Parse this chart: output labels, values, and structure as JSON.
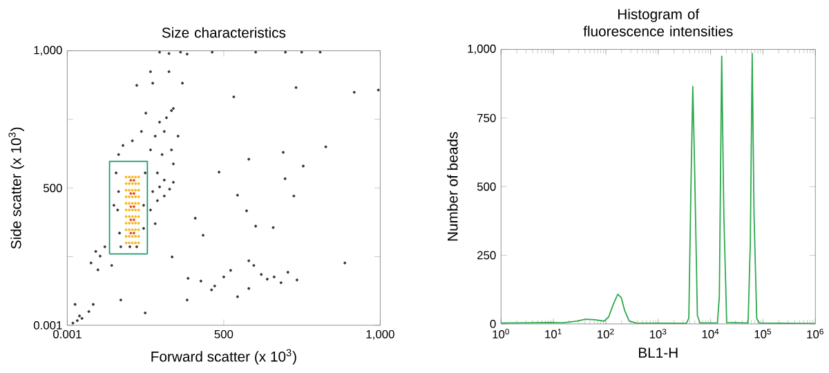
{
  "chart_data": [
    {
      "type": "scatter",
      "title": "Size characteristics",
      "xlabel": "Forward scatter (x 10$^{3}$)",
      "ylabel": "Side scatter (x 10$^{3}$)",
      "xlim": [
        0.001,
        1000
      ],
      "ylim": [
        0.001,
        1000
      ],
      "xticks": [
        0.001,
        500,
        {
          "value": 1000,
          "label": "1,000"
        }
      ],
      "yticks": [
        0.001,
        {
          "value": 250,
          "label": null
        },
        500,
        {
          "value": 750,
          "label": null
        },
        {
          "value": 1000,
          "label": "1,000"
        }
      ],
      "series": [
        {
          "color": "#333333",
          "x": [
            295,
            325,
            362,
            383,
            463,
            602,
            697,
            749,
            808,
            266,
            273,
            325,
            368,
            222,
            339,
            333,
            317,
            295,
            251,
            281,
            310,
            354,
            237,
            208,
            178,
            164,
            266,
            303,
            333,
            339,
            288,
            310,
            295,
            327,
            273,
            310,
            339,
            288,
            266,
            281,
            532,
            731,
            917,
            994,
            826,
            690,
            754,
            580,
            485,
            696,
            724,
            544,
            573,
            658,
            602,
            434,
            409,
            335,
            386,
            427,
            471,
            500,
            522,
            544,
            580,
            596,
            620,
            639,
            661,
            683,
            734,
            705,
            887,
            383,
            461,
            580,
            171,
            249,
            91,
            105,
            76,
            120,
            98,
            142,
            25,
            39,
            47,
            69,
            83,
            32,
            18,
            156,
            164,
            161,
            167,
            171,
            222,
            244,
            244,
            249,
            149,
            200
          ],
          "values": [
            995,
            990,
            995,
            988,
            995,
            995,
            995,
            995,
            995,
            924,
            882,
            924,
            882,
            874,
            790,
            782,
            756,
            740,
            773,
            689,
            706,
            689,
            706,
            672,
            655,
            622,
            639,
            622,
            639,
            588,
            555,
            529,
            504,
            496,
            487,
            471,
            521,
            454,
            420,
            370,
            832,
            866,
            849,
            857,
            650,
            630,
            580,
            605,
            558,
            534,
            471,
            474,
            417,
            356,
            361,
            328,
            390,
            249,
            171,
            161,
            143,
            176,
            200,
            104,
            235,
            218,
            185,
            168,
            176,
            155,
            165,
            193,
            227,
            92,
            129,
            134,
            92,
            45,
            269,
            252,
            227,
            286,
            202,
            218,
            76,
            34,
            25,
            50,
            76,
            17,
            8,
            555,
            487,
            420,
            336,
            286,
            286,
            437,
            353,
            555,
            437,
            286
          ]
        },
        {
          "color": "#f5b820",
          "x": [
            188,
            188,
            188,
            188,
            188,
            188,
            188,
            188,
            188,
            188,
            188,
            198,
            198,
            198,
            198,
            198,
            198,
            198,
            198,
            198,
            198,
            198,
            208,
            208,
            208,
            208,
            208,
            208,
            208,
            208,
            208,
            208,
            208,
            218,
            218,
            218,
            218,
            218,
            218,
            218,
            218,
            218,
            218,
            218,
            228,
            228,
            228,
            228,
            228,
            228,
            228,
            228,
            228,
            228,
            228
          ],
          "values": [
            300,
            324,
            348,
            372,
            396,
            420,
            444,
            468,
            492,
            516,
            540,
            300,
            324,
            348,
            372,
            396,
            420,
            444,
            468,
            492,
            516,
            540,
            300,
            324,
            348,
            372,
            396,
            420,
            444,
            468,
            492,
            516,
            540,
            300,
            324,
            348,
            372,
            396,
            420,
            444,
            468,
            492,
            516,
            540,
            300,
            324,
            348,
            372,
            396,
            420,
            444,
            468,
            492,
            516,
            540
          ]
        },
        {
          "color": "#e0501a",
          "x": [
            203,
            203,
            203,
            203,
            203,
            213,
            213,
            213,
            213,
            213
          ],
          "values": [
            336,
            384,
            432,
            480,
            528,
            336,
            384,
            432,
            480,
            528
          ]
        },
        {
          "type": "line",
          "marker": "none",
          "color": "#1a9a6a",
          "x": [
            135,
            135,
            256,
            256
          ],
          "values": [
            260,
            597,
            597,
            260
          ]
        },
        {
          "type": "line",
          "marker": "none",
          "color": "#1a9a6a",
          "x": [
            135,
            256
          ],
          "values": [
            260,
            260
          ]
        }
      ]
    },
    {
      "type": "line",
      "title": "Histogram of fluorescence intensities",
      "xlabel": "BL1-H",
      "ylabel": "Number of beads",
      "log": "x",
      "xlim": [
        1,
        1000000
      ],
      "ylim": [
        0,
        1000
      ],
      "xticks": [
        {
          "value": 1,
          "label": "10$^{0}$"
        },
        {
          "value": 10,
          "label": "10$^{1}$"
        },
        {
          "value": 100,
          "label": "10$^{2}$"
        },
        {
          "value": 1000,
          "label": "10$^{3}$"
        },
        {
          "value": 10000,
          "label": "10$^{4}$"
        },
        {
          "value": 100000,
          "label": "10$^{5}$"
        },
        {
          "value": 1000000,
          "label": "10$^{6}$"
        }
      ],
      "yticks": [
        0,
        250,
        500,
        750,
        {
          "value": 1000,
          "label": "1,000"
        }
      ],
      "series": [
        {
          "color": "#2aa84a",
          "x": [
            1,
            3,
            8.3,
            15,
            28,
            41,
            62,
            93,
            113,
            138,
            169,
            198,
            228,
            280,
            380,
            3450,
            3840,
            4220,
            4580,
            4920,
            5600,
            6300,
            13500,
            14700,
            16300,
            17900,
            20300,
            52000,
            57400,
            62300,
            67500,
            76000,
            85000,
            1000000
          ],
          "values": [
            3,
            4,
            5,
            4,
            10,
            17,
            15,
            10,
            25,
            70,
            108,
            95,
            50,
            10,
            3,
            2,
            20,
            500,
            865,
            600,
            30,
            3,
            3,
            100,
            975,
            400,
            5,
            3,
            300,
            985,
            400,
            20,
            3,
            1
          ]
        }
      ]
    }
  ]
}
